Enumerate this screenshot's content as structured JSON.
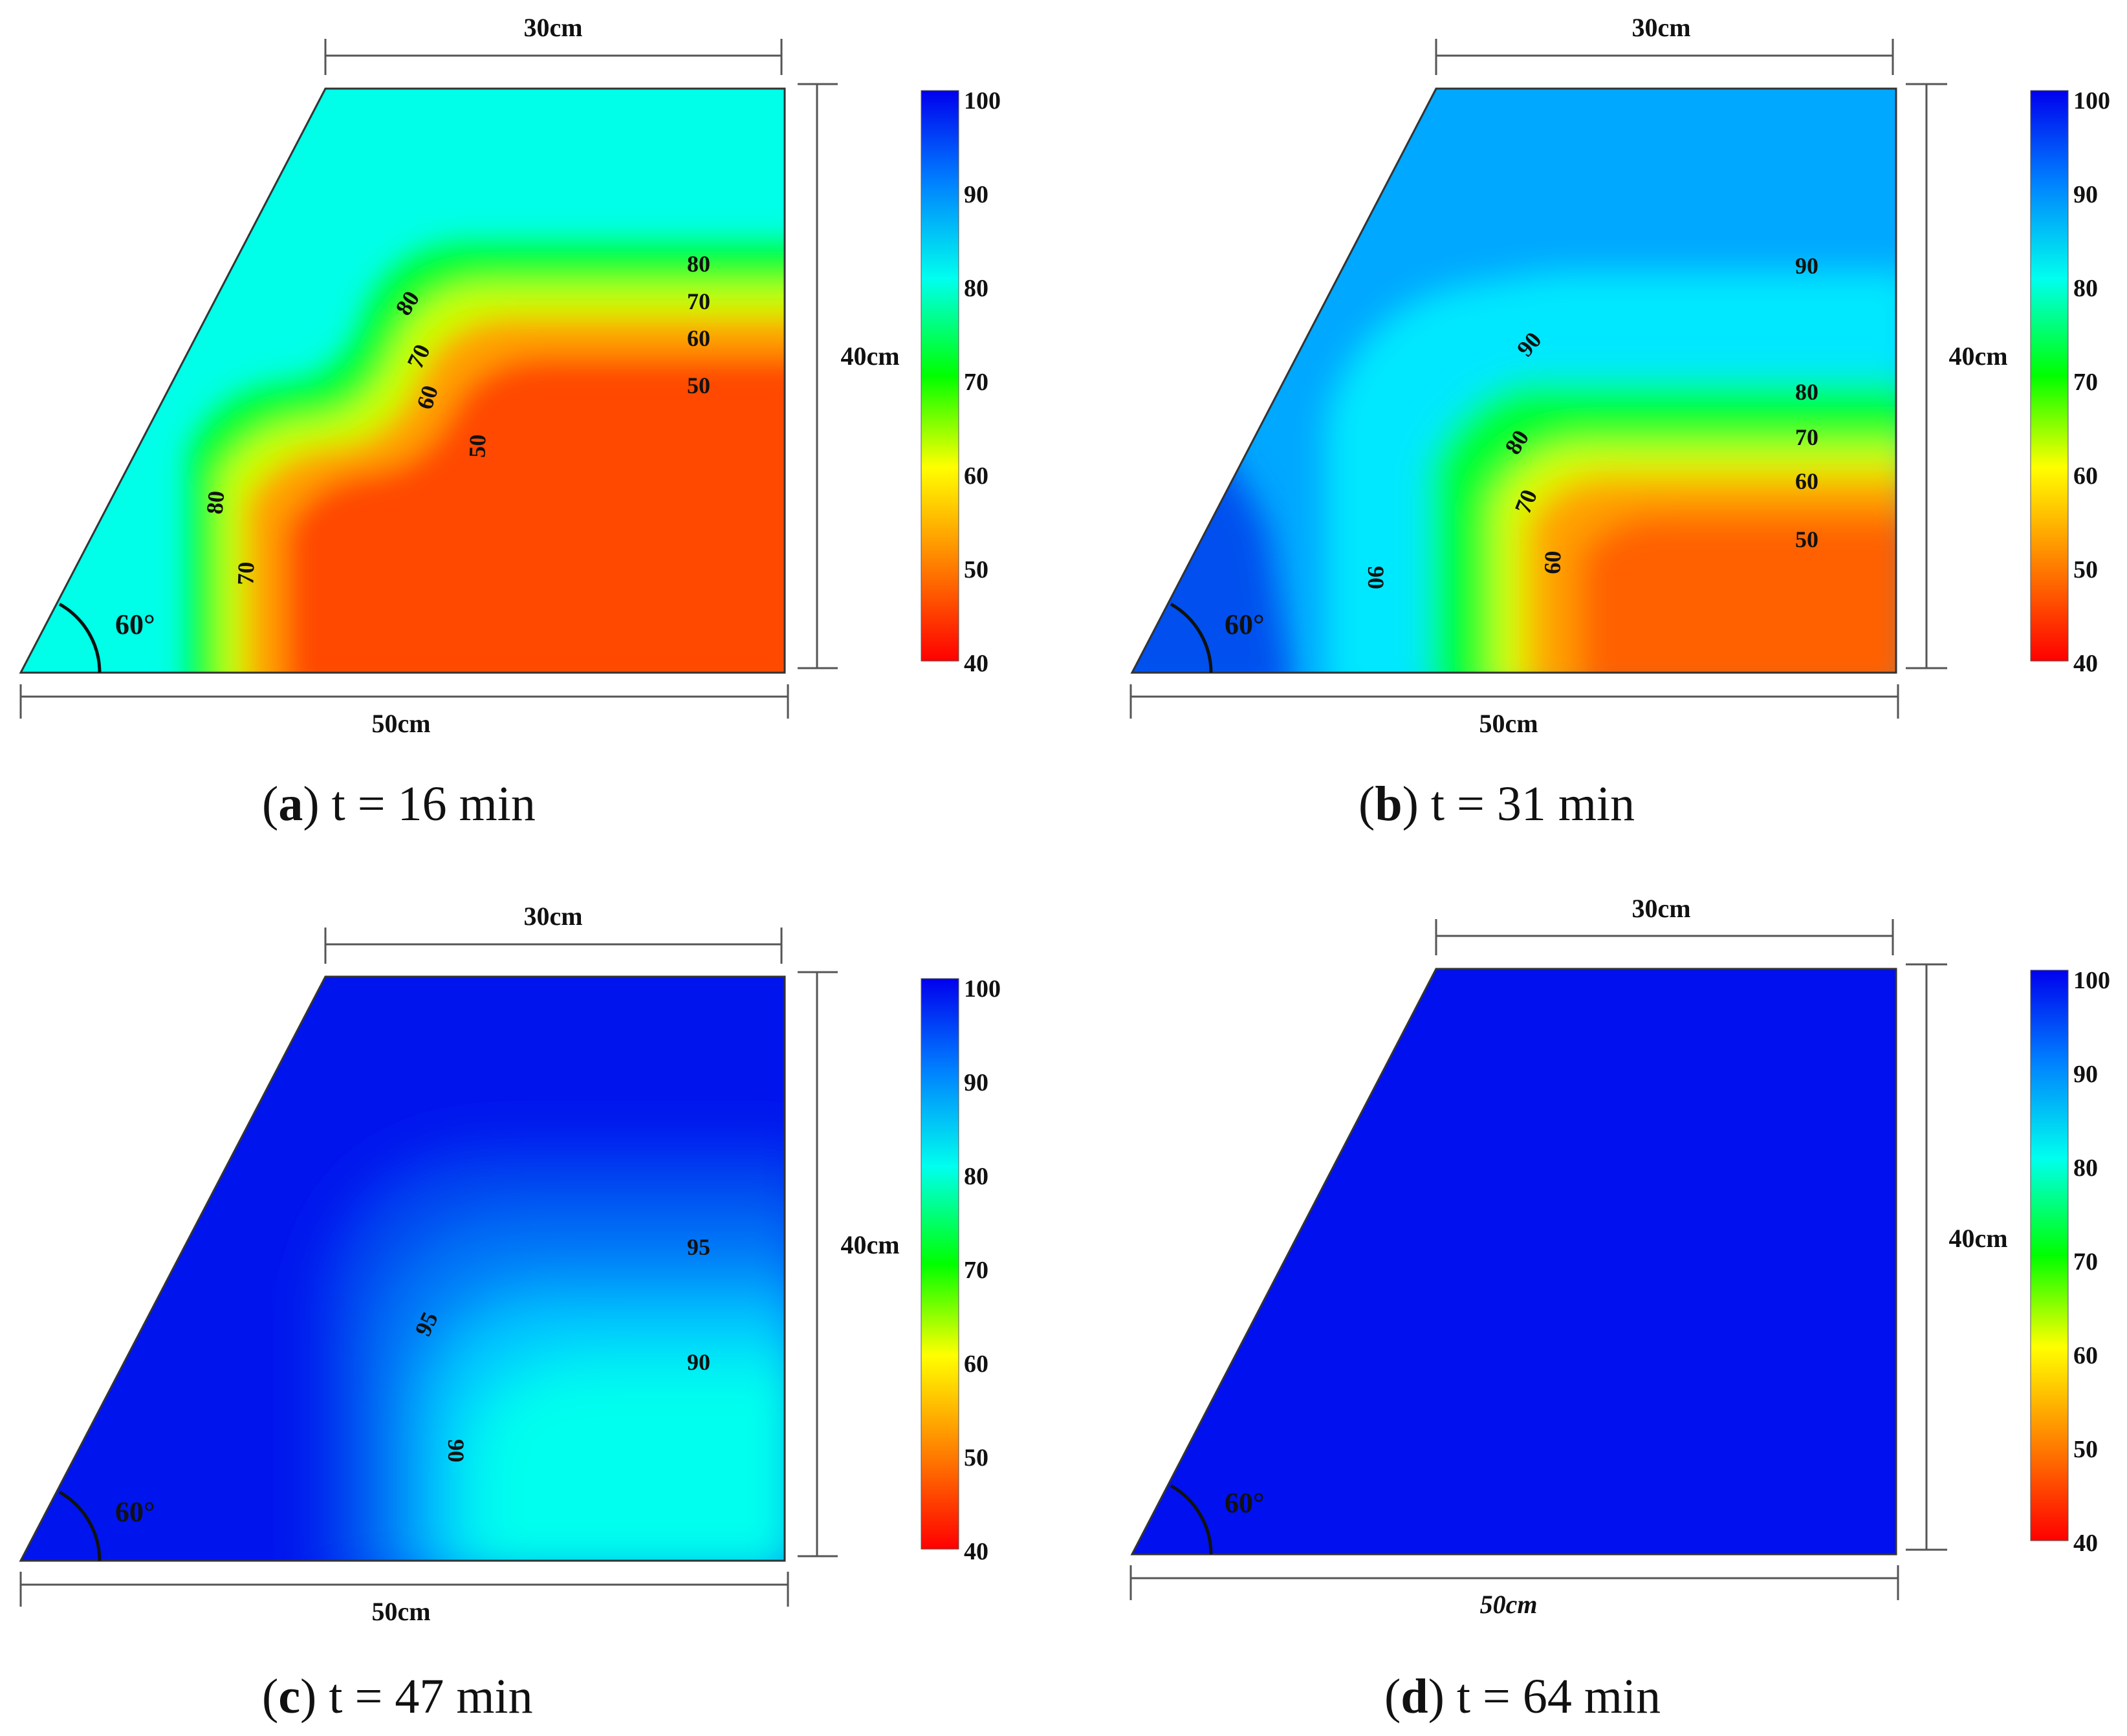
{
  "panels": [
    {
      "id": "a",
      "caption": {
        "letter": "a",
        "open": "(",
        "close": ")",
        "rest": " t = 16 min"
      },
      "dims": {
        "top": "30cm",
        "right": "40cm",
        "bottom": "50cm",
        "angle": "60°"
      },
      "colorbar_ticks": [
        "100",
        "90",
        "80",
        "70",
        "60",
        "50",
        "40"
      ],
      "contour_labels": [
        {
          "text": "80"
        },
        {
          "text": "70"
        },
        {
          "text": "60"
        },
        {
          "text": "50"
        },
        {
          "text": "80"
        },
        {
          "text": "70"
        },
        {
          "text": "60"
        },
        {
          "text": "50"
        },
        {
          "text": "80"
        },
        {
          "text": "70"
        }
      ]
    },
    {
      "id": "b",
      "caption": {
        "letter": "b",
        "open": "(",
        "close": ")",
        "rest": " t = 31 min"
      },
      "dims": {
        "top": "30cm",
        "right": "40cm",
        "bottom": "50cm",
        "angle": "60°"
      },
      "colorbar_ticks": [
        "100",
        "90",
        "80",
        "70",
        "60",
        "50",
        "40"
      ],
      "contour_labels": [
        {
          "text": "90"
        },
        {
          "text": "80"
        },
        {
          "text": "70"
        },
        {
          "text": "60"
        },
        {
          "text": "50"
        },
        {
          "text": "90"
        },
        {
          "text": "80"
        },
        {
          "text": "70"
        },
        {
          "text": "60"
        },
        {
          "text": "90"
        }
      ]
    },
    {
      "id": "c",
      "caption": {
        "letter": "c",
        "open": "(",
        "close": ")",
        "rest": " t = 47 min"
      },
      "dims": {
        "top": "30cm",
        "right": "40cm",
        "bottom": "50cm",
        "angle": "60°"
      },
      "colorbar_ticks": [
        "100",
        "90",
        "80",
        "70",
        "60",
        "50",
        "40"
      ],
      "contour_labels": [
        {
          "text": "95"
        },
        {
          "text": "90"
        },
        {
          "text": "95"
        },
        {
          "text": "90"
        }
      ]
    },
    {
      "id": "d",
      "caption": {
        "letter": "d",
        "open": "(",
        "close": ")",
        "rest": " t = 64 min"
      },
      "dims": {
        "top": "30cm",
        "right": "40cm",
        "bottom": "50cm",
        "angle": "60°"
      },
      "colorbar_ticks": [
        "100",
        "90",
        "80",
        "70",
        "60",
        "50",
        "40"
      ],
      "contour_labels": []
    }
  ],
  "colors": {
    "scale": [
      "#0000ee",
      "#0080ff",
      "#00ffee",
      "#00ff00",
      "#ffff00",
      "#ff8000",
      "#ff0000"
    ],
    "panel_a_background": "#00ffe8",
    "panel_a_hot": "#ff4a00",
    "panel_b_background": "#00a8ff",
    "panel_c_background": "#0014ee",
    "panel_d_background": "#0010ee"
  }
}
